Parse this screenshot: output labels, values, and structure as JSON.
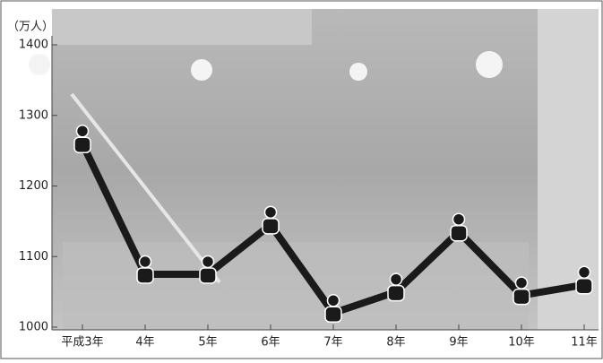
{
  "chart_data": {
    "type": "line",
    "y_label": "（万人）",
    "categories": [
      "平成3年",
      "4年",
      "5年",
      "6年",
      "7年",
      "8年",
      "9年",
      "10年",
      "11年"
    ],
    "values": [
      1260,
      1075,
      1075,
      1145,
      1020,
      1050,
      1135,
      1045,
      1060
    ],
    "color": "#1a1a1a",
    "ylim": [
      1000,
      1400
    ],
    "yticks": [
      1000,
      1100,
      1200,
      1300,
      1400
    ]
  }
}
